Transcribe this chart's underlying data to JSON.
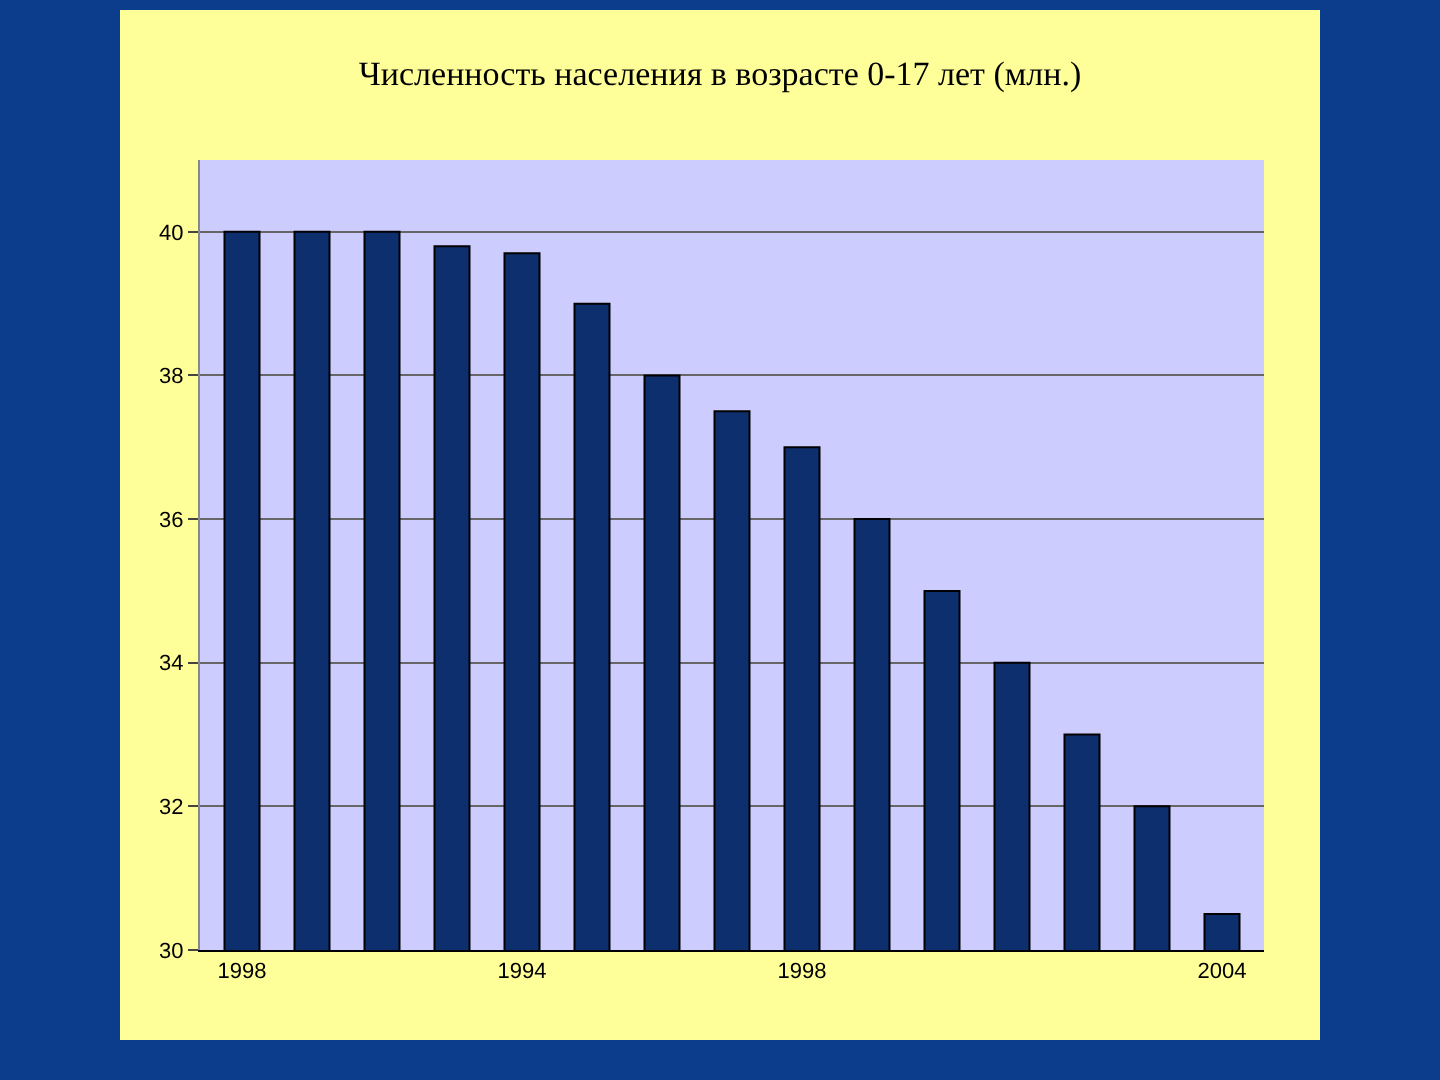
{
  "chart_data": {
    "type": "bar",
    "title": "Численность населения в возрасте 0-17 лет (млн.)",
    "categories": [
      "1998",
      null,
      null,
      null,
      "1994",
      null,
      null,
      null,
      "1998",
      null,
      null,
      null,
      null,
      null,
      "2004"
    ],
    "values": [
      40,
      40,
      40,
      39.8,
      39.7,
      39,
      38,
      37.5,
      37,
      36,
      35,
      34,
      33,
      32,
      30.5
    ],
    "color": "#0d2f6e",
    "ylim": [
      30,
      41
    ],
    "yticks": [
      30,
      32,
      34,
      36,
      38,
      40
    ],
    "grid": "y",
    "legend": false
  }
}
